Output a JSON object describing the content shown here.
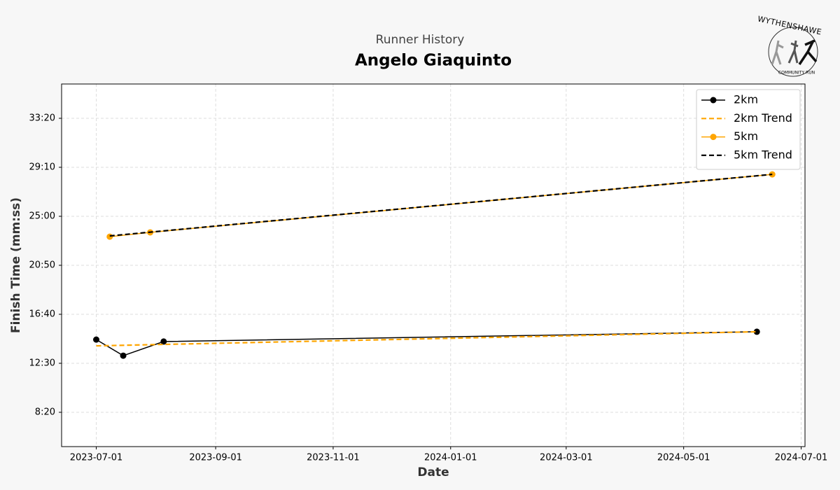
{
  "chart_data": {
    "type": "line",
    "subtitle": "Runner History",
    "title": "Angelo Giaquinto",
    "xlabel": "Date",
    "ylabel": "Finish Time (mm:ss)",
    "logo": {
      "top": "WYTHENSHAWE",
      "bottom": "COMMUNITY RUN"
    },
    "xlim": [
      "2023-06-13",
      "2024-07-03"
    ],
    "xticks": [
      "2023-07-01",
      "2023-09-01",
      "2023-11-01",
      "2024-01-01",
      "2024-03-01",
      "2024-05-01",
      "2024-07-01"
    ],
    "ylim": [
      325,
      2175
    ],
    "yticks": [
      {
        "value": 500,
        "label": "8:20"
      },
      {
        "value": 750,
        "label": "12:30"
      },
      {
        "value": 1000,
        "label": "16:40"
      },
      {
        "value": 1250,
        "label": "20:50"
      },
      {
        "value": 1500,
        "label": "25:00"
      },
      {
        "value": 1750,
        "label": "29:10"
      },
      {
        "value": 2000,
        "label": "33:20"
      }
    ],
    "grid": true,
    "legend": "upper right",
    "series": [
      {
        "name": "2km",
        "color": "#000000",
        "dashed": false,
        "marker": true,
        "x": [
          "2023-07-01",
          "2023-07-15",
          "2023-08-05",
          "2024-06-08"
        ],
        "values": [
          871,
          789,
          861,
          911
        ]
      },
      {
        "name": "2km Trend",
        "color": "#ffa500",
        "dashed": true,
        "marker": false,
        "x": [
          "2023-07-01",
          "2024-06-08"
        ],
        "values": [
          839,
          911
        ]
      },
      {
        "name": "5km",
        "color": "#ffa500",
        "dashed": false,
        "marker": true,
        "x": [
          "2023-07-08",
          "2023-07-29",
          "2024-06-16"
        ],
        "values": [
          1396,
          1418,
          1714
        ]
      },
      {
        "name": "5km Trend",
        "color": "#000000",
        "dashed": true,
        "marker": false,
        "x": [
          "2023-07-08",
          "2024-06-16"
        ],
        "values": [
          1400,
          1714
        ]
      }
    ]
  }
}
